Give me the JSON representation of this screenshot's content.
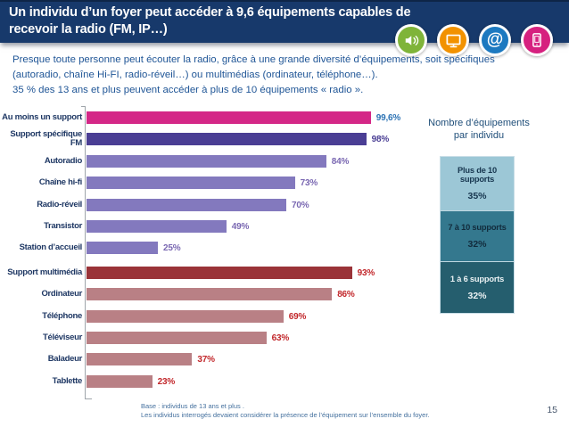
{
  "slide": {
    "title_lines": [
      "Un individu d’un foyer peut accéder à 9,6 équipements capables de",
      "recevoir la radio (FM, IP…)"
    ],
    "page_number": "15"
  },
  "colors": {
    "banner_bg": "#17396B",
    "title_text": "#FFFFFF",
    "body_text": "#1F5596",
    "category_label_text": "#1F3864",
    "axis": "#9FA5AB"
  },
  "icons": [
    {
      "name": "speaker-icon",
      "color": "#7FB439"
    },
    {
      "name": "monitor-icon",
      "color": "#F29200"
    },
    {
      "name": "at-icon",
      "color": "#1C79C0",
      "glyph": "@"
    },
    {
      "name": "phone-icon",
      "color": "#D6217F"
    }
  ],
  "intro": {
    "lines": [
      "Presque toute personne peut écouter la radio, grâce à une grande diversité d’équipements, soit spécifiques",
      "(autoradio, chaîne Hi-FI, radio-réveil…) ou multimédias (ordinateur, téléphone…).",
      "35 % des 13 ans et plus peuvent accéder à plus de 10 équipements « radio »."
    ]
  },
  "chart_data": [
    {
      "type": "bar",
      "orientation": "horizontal",
      "title": "",
      "xlim": [
        0,
        100
      ],
      "grid": false,
      "categories": [
        "Au moins un support",
        "Support spécifique FM",
        "Autoradio",
        "Chaîne hi-fi",
        "Radio-réveil",
        "Transistor",
        "Station d’accueil",
        "Support multimédia",
        "Ordinateur",
        "Téléphone",
        "Téléviseur",
        "Baladeur",
        "Tablette"
      ],
      "values": [
        99.6,
        98,
        84,
        73,
        70,
        49,
        25,
        93,
        86,
        69,
        63,
        37,
        23
      ],
      "value_labels": [
        "99,6%",
        "98%",
        "84%",
        "73%",
        "70%",
        "49%",
        "25%",
        "93%",
        "86%",
        "69%",
        "63%",
        "37%",
        "23%"
      ],
      "groups": [
        "total",
        "fm",
        "fm",
        "fm",
        "fm",
        "fm",
        "fm",
        "multimedia",
        "multimedia",
        "multimedia",
        "multimedia",
        "multimedia",
        "multimedia"
      ],
      "bar_colors": [
        "#D42787",
        "#4A3E94",
        "#8379BE",
        "#8379BE",
        "#8379BE",
        "#8379BE",
        "#8379BE",
        "#9A3338",
        "#B98085",
        "#B98085",
        "#B98085",
        "#B98085",
        "#B98085"
      ],
      "value_colors": [
        "#2E74B5",
        "#4A3E94",
        "#7A68B2",
        "#7A68B2",
        "#7A68B2",
        "#7A68B2",
        "#7A68B2",
        "#C2272B",
        "#C2272B",
        "#C2272B",
        "#C2272B",
        "#C2272B",
        "#C2272B"
      ]
    },
    {
      "type": "bar",
      "subtype": "stacked",
      "title": "Nombre d’équipements par individu",
      "title_lines": [
        "Nombre d’équipements",
        "par individu"
      ],
      "segments": [
        {
          "label": "Plus de 10 supports",
          "value": 35,
          "display": "35%",
          "color": "#9CC7D6",
          "text_color": "#17364F"
        },
        {
          "label": "7 à 10 supports",
          "value": 32,
          "display": "32%",
          "color": "#34788E",
          "text_color": "#122B3C"
        },
        {
          "label": "1 à 6 supports",
          "value": 32,
          "display": "32%",
          "color": "#255E6E",
          "text_color": "#EAF1F3"
        }
      ]
    }
  ],
  "footnote": {
    "lines": [
      "Base : individus de 13 ans et plus .",
      "Les individus interrogés devaient considérer la présence de l’équipement sur l’ensemble du foyer."
    ]
  }
}
